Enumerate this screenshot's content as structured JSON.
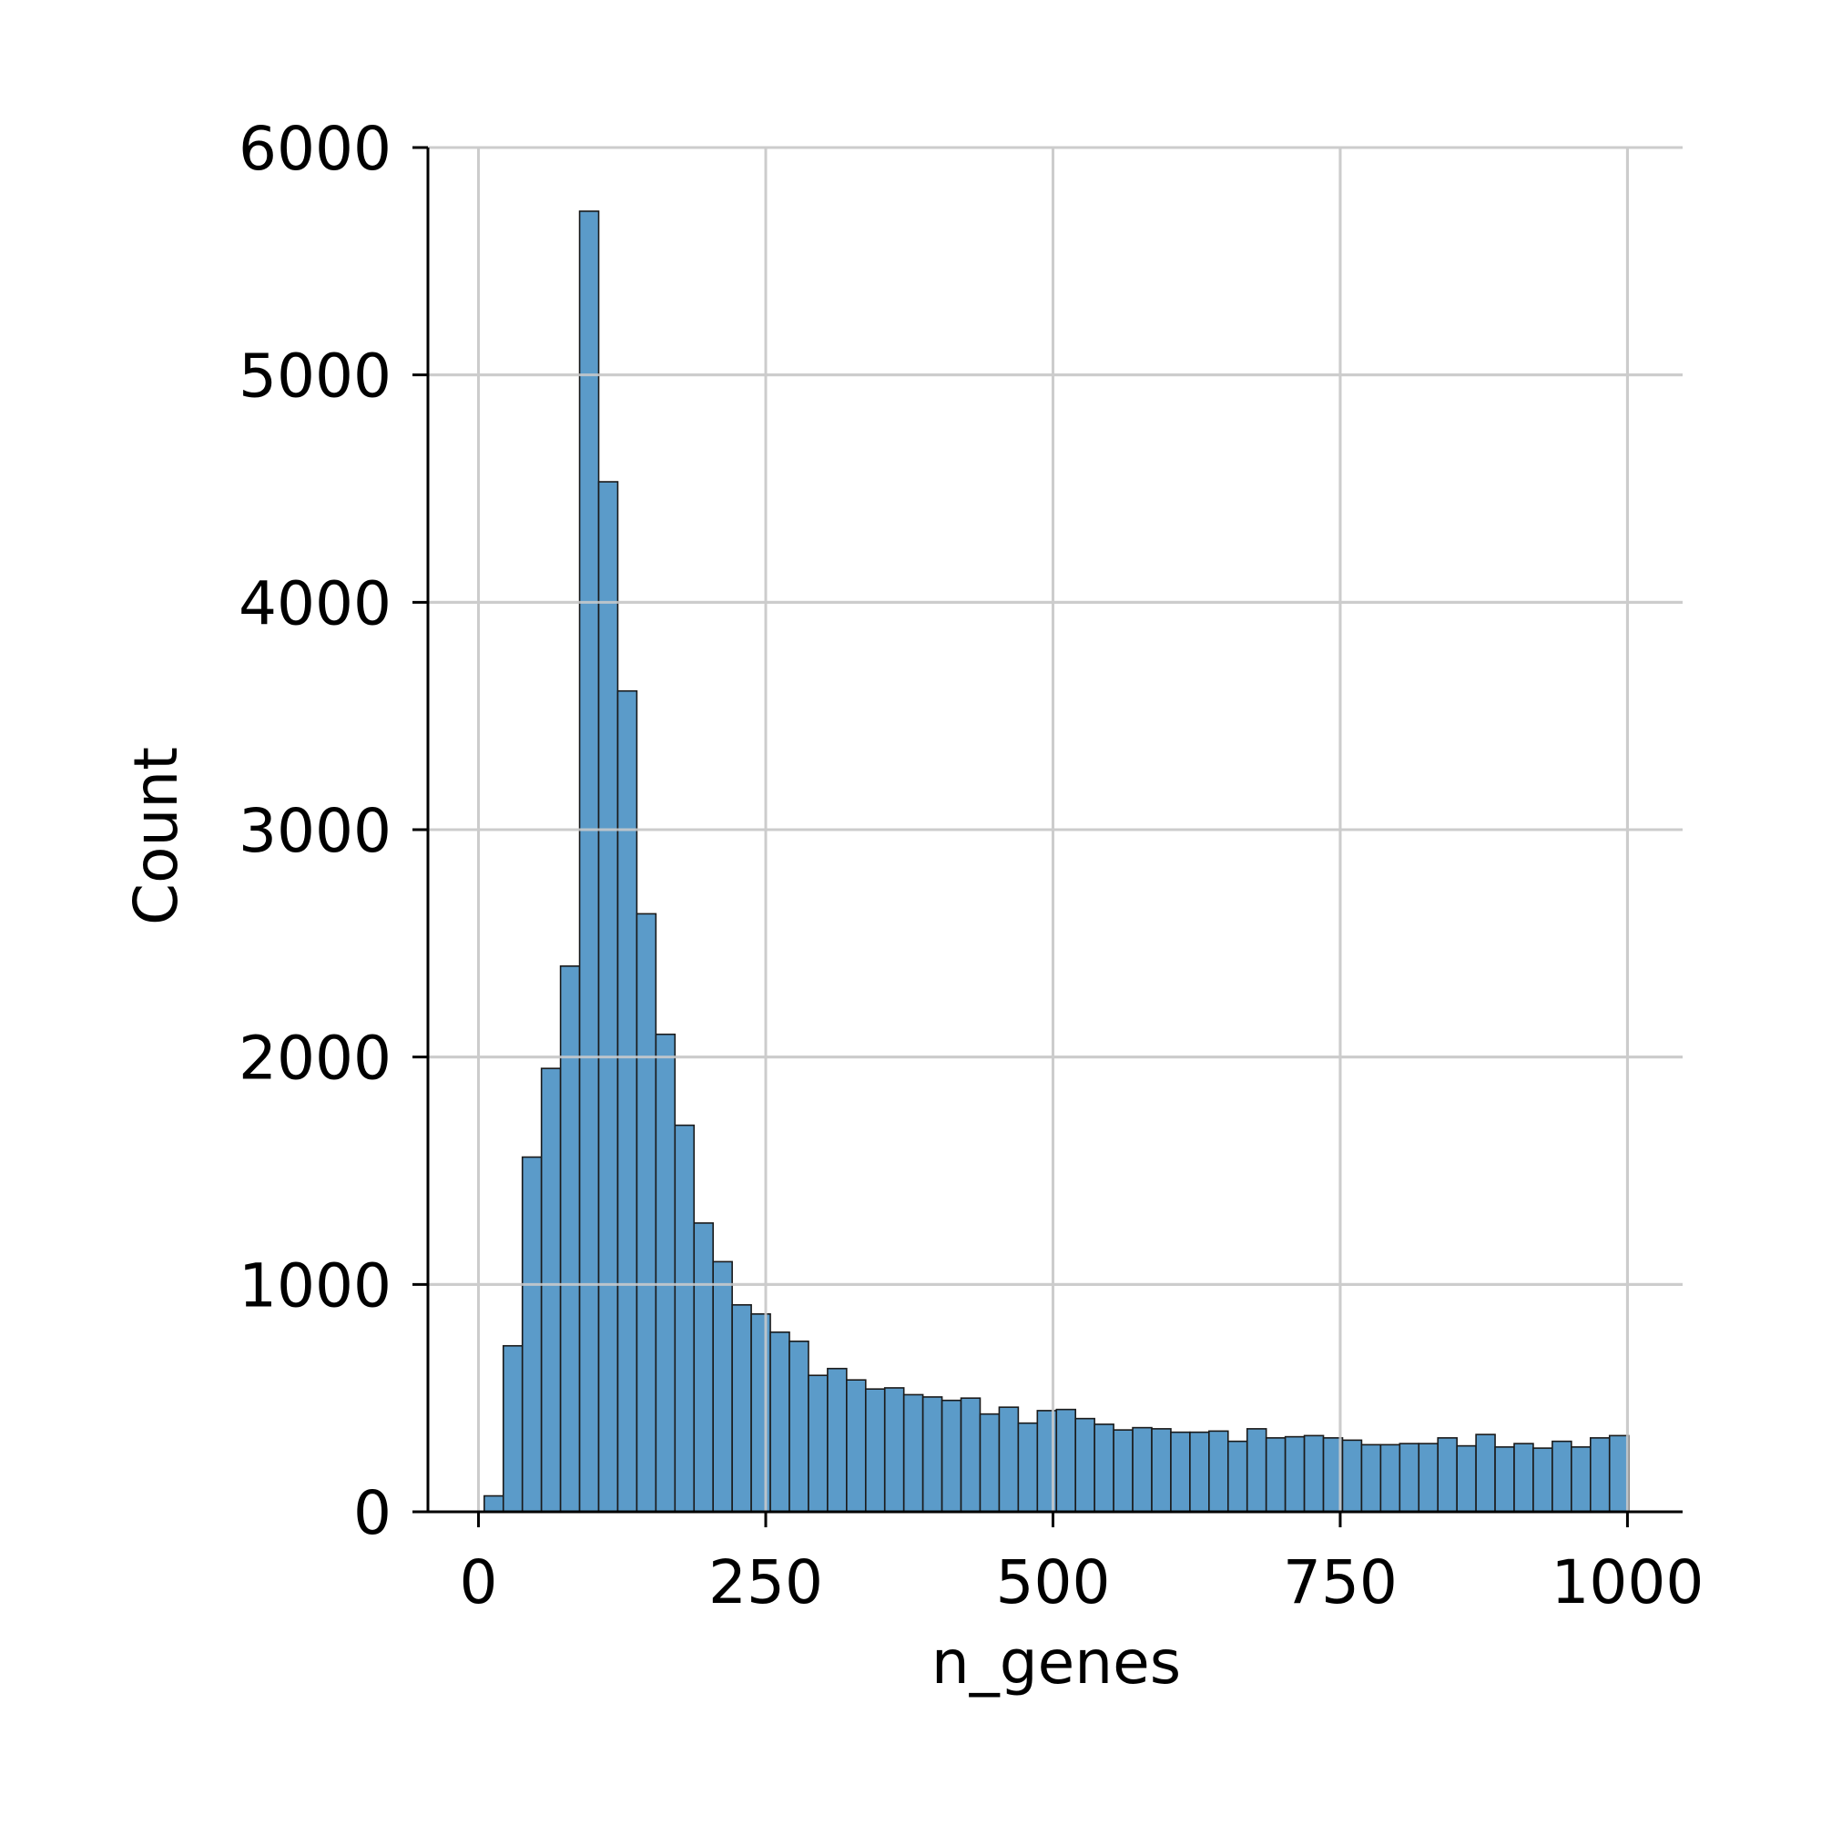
{
  "chart_data": {
    "type": "bar",
    "xlabel": "n_genes",
    "ylabel": "Count",
    "xlim": [
      -44,
      1048
    ],
    "ylim": [
      0,
      6000
    ],
    "x_ticks": [
      0,
      250,
      500,
      750,
      1000
    ],
    "x_tick_labels": [
      "0",
      "250",
      "500",
      "750",
      "1000"
    ],
    "y_ticks": [
      0,
      1000,
      2000,
      3000,
      4000,
      5000,
      6000
    ],
    "y_tick_labels": [
      "0",
      "1000",
      "2000",
      "3000",
      "4000",
      "5000",
      "6000"
    ],
    "grid": true,
    "bin_start": 5,
    "bin_width": 16.6,
    "bin_values": [
      70,
      730,
      1560,
      1950,
      2400,
      5720,
      4530,
      3610,
      2630,
      2100,
      1700,
      1270,
      1100,
      910,
      870,
      790,
      750,
      600,
      630,
      580,
      540,
      545,
      515,
      505,
      490,
      500,
      430,
      460,
      390,
      445,
      450,
      410,
      385,
      360,
      370,
      365,
      350,
      350,
      355,
      310,
      365,
      325,
      330,
      335,
      325,
      315,
      295,
      295,
      300,
      300,
      325,
      290,
      340,
      285,
      300,
      280,
      310,
      285,
      325,
      335
    ],
    "bar_color": "#5b9bc9",
    "edge_color": "#1a1a1a",
    "grid_color": "#cccccc"
  }
}
